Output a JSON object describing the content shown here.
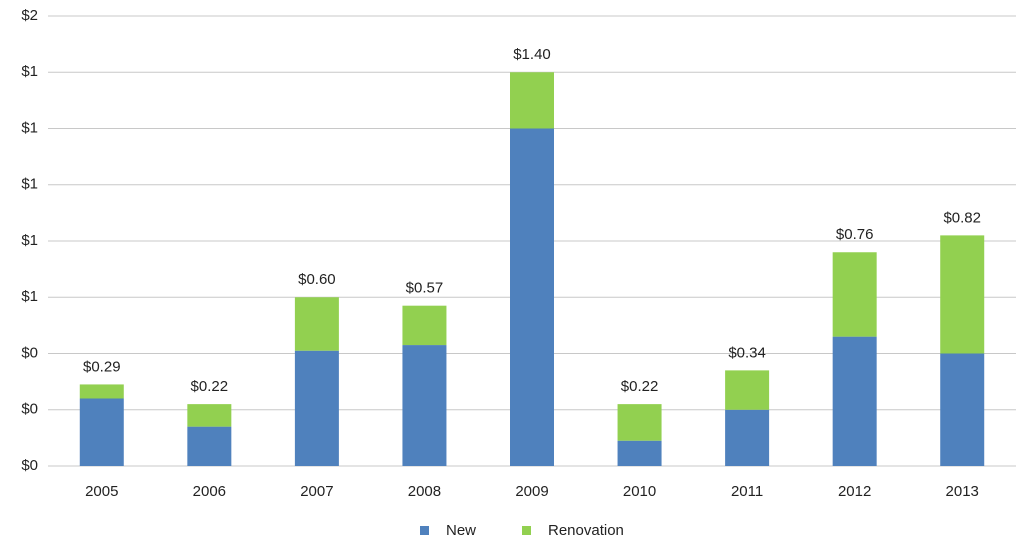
{
  "chart_data": {
    "type": "stacked_bar",
    "categories": [
      "2005",
      "2006",
      "2007",
      "2008",
      "2009",
      "2010",
      "2011",
      "2012",
      "2013"
    ],
    "series": [
      {
        "name": "New",
        "color": "#4f81bd",
        "values": [
          0.24,
          0.14,
          0.41,
          0.43,
          1.2,
          0.09,
          0.2,
          0.46,
          0.4
        ]
      },
      {
        "name": "Renovation",
        "color": "#92d050",
        "values": [
          0.05,
          0.08,
          0.19,
          0.14,
          0.2,
          0.13,
          0.14,
          0.3,
          0.42
        ]
      }
    ],
    "totals": {
      "values": [
        0.29,
        0.22,
        0.6,
        0.57,
        1.4,
        0.22,
        0.34,
        0.76,
        0.82
      ],
      "value_labels": [
        "$0.29",
        "$0.22",
        "$0.60",
        "$0.57",
        "$1.40",
        "$0.22",
        "$0.34",
        "$0.76",
        "$0.82"
      ]
    },
    "ylim": [
      0,
      1.6
    ],
    "yticks": [
      {
        "value": 0,
        "label": "$0"
      },
      {
        "value": 0.2,
        "label": "$0"
      },
      {
        "value": 0.4,
        "label": "$0"
      },
      {
        "value": 0.6,
        "label": "$1"
      },
      {
        "value": 0.8,
        "label": "$1"
      },
      {
        "value": 1.0,
        "label": "$1"
      },
      {
        "value": 1.2,
        "label": "$1"
      },
      {
        "value": 1.4,
        "label": "$1"
      },
      {
        "value": 1.6,
        "label": "$2"
      }
    ],
    "grid": true
  }
}
